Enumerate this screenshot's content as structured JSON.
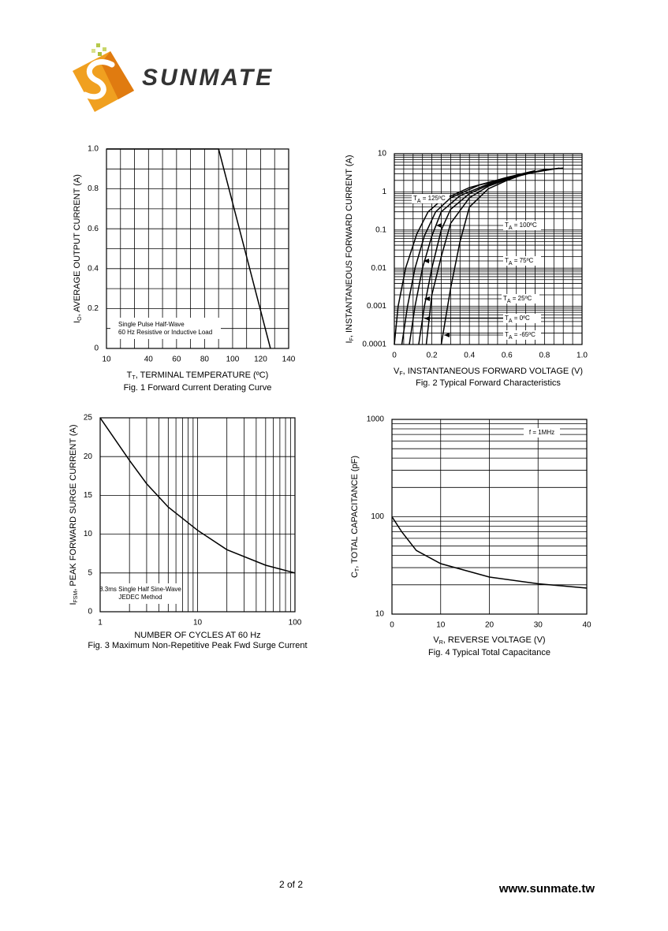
{
  "logo": "SUNMATE",
  "chart_data": [
    {
      "type": "line",
      "title": "Fig. 1  Forward Current Derating Curve",
      "xlabel": [
        "T",
        "T",
        ", TERMINAL TEMPERATURE (ºC)"
      ],
      "ylabel": [
        "I",
        "O",
        ", AVERAGE OUTPUT CURRENT (A)"
      ],
      "xlim": [
        10,
        140
      ],
      "ylim": [
        0,
        1
      ],
      "xticks": [
        10,
        40,
        60,
        80,
        100,
        120,
        140
      ],
      "yticks": [
        0,
        0.2,
        0.4,
        0.6,
        0.8,
        {
          "value": 1,
          "label": "1.0"
        }
      ],
      "grid": true,
      "xgrid": [
        10,
        20,
        30,
        40,
        50,
        60,
        70,
        80,
        90,
        100,
        110,
        120,
        130,
        140
      ],
      "ygrid": [
        0,
        0.1,
        0.2,
        0.3,
        0.4,
        0.5,
        0.6,
        0.7,
        0.8,
        0.9,
        1
      ],
      "annotation": [
        "Single Pulse Half-Wave",
        "60 Hz Resistive or Inductive Load"
      ],
      "series": [
        {
          "color": "#000000",
          "x": [
            10,
            90,
            127
          ],
          "values": [
            1,
            1,
            0
          ]
        }
      ]
    },
    {
      "type": "line",
      "title": "Fig. 2  Typical Forward Characteristics",
      "xlabel": [
        "V",
        "F",
        ", INSTANTANEOUS FORWARD VOLTAGE (V)"
      ],
      "ylabel": [
        "I",
        "F",
        ", INSTANTANEOUS FORWARD CURRENT (A)"
      ],
      "xlim": [
        0,
        1
      ],
      "ylim": [
        0.0001,
        10
      ],
      "yscale": "log",
      "xticks": [
        0,
        0.2,
        0.4,
        0.6,
        0.8,
        {
          "value": 1,
          "label": "1.0"
        }
      ],
      "yticks": [
        0.0001,
        0.001,
        0.01,
        0.1,
        1,
        10
      ],
      "grid": true,
      "xgrid": [
        0,
        0.05,
        0.1,
        0.15,
        0.2,
        0.25,
        0.3,
        0.35,
        0.4,
        0.45,
        0.5,
        0.55,
        0.6,
        0.65,
        0.7,
        0.75,
        0.8,
        0.85,
        0.9,
        0.95,
        1
      ],
      "ygrid": [
        0.0001,
        0.0002,
        0.0003,
        0.0004,
        0.0005,
        0.0006,
        0.0007,
        0.0008,
        0.0009,
        0.001,
        0.002,
        0.003,
        0.004,
        0.005,
        0.006,
        0.007,
        0.008,
        0.009,
        0.01,
        0.02,
        0.03,
        0.04,
        0.05,
        0.06,
        0.07,
        0.08,
        0.09,
        0.1,
        0.2,
        0.3,
        0.4,
        0.5,
        0.6,
        0.7,
        0.8,
        0.9,
        1,
        2,
        3,
        4,
        5,
        6,
        7,
        8,
        9,
        10
      ],
      "series": [
        {
          "name": [
            "T",
            "A",
            " = 125ºC"
          ],
          "color": "#000000",
          "x": [
            0,
            0.02,
            0.06,
            0.12,
            0.18,
            0.25,
            0.4,
            0.6,
            0.75
          ],
          "values": [
            0.0001,
            0.001,
            0.01,
            0.08,
            0.3,
            0.6,
            1.3,
            2.4,
            3.6
          ]
        },
        {
          "name": [
            "T",
            "A",
            " = 100ºC"
          ],
          "color": "#000000",
          "x": [
            0.04,
            0.07,
            0.11,
            0.16,
            0.22,
            0.3,
            0.45,
            0.6,
            0.75
          ],
          "values": [
            0.0001,
            0.001,
            0.01,
            0.07,
            0.3,
            0.7,
            1.5,
            2.3,
            3.5
          ]
        },
        {
          "name": [
            "T",
            "A",
            " = 75ºC"
          ],
          "color": "#000000",
          "x": [
            0.08,
            0.11,
            0.15,
            0.2,
            0.25,
            0.35,
            0.5,
            0.65,
            0.8
          ],
          "values": [
            0.0001,
            0.001,
            0.01,
            0.07,
            0.3,
            0.8,
            1.6,
            2.6,
            3.8
          ]
        },
        {
          "name": [
            "T",
            "A",
            " = 25ºC"
          ],
          "color": "#000000",
          "x": [
            0.13,
            0.16,
            0.2,
            0.25,
            0.3,
            0.4,
            0.5,
            0.6,
            0.75,
            0.88
          ],
          "values": [
            0.0001,
            0.001,
            0.01,
            0.1,
            0.35,
            0.9,
            1.5,
            2.2,
            3.3,
            4.2
          ]
        },
        {
          "name": [
            "T",
            "A",
            " = 0ºC"
          ],
          "color": "#000000",
          "x": [
            0.17,
            0.2,
            0.25,
            0.3,
            0.4,
            0.5,
            0.6,
            0.7,
            0.85
          ],
          "values": [
            0.0001,
            0.002,
            0.02,
            0.15,
            0.7,
            1.4,
            2.1,
            3,
            4
          ]
        },
        {
          "name": [
            "T",
            "A",
            " = -65ºC"
          ],
          "color": "#000000",
          "x": [
            0.25,
            0.3,
            0.35,
            0.4,
            0.5,
            0.6,
            0.7,
            0.8,
            0.9
          ],
          "values": [
            0.0001,
            0.003,
            0.05,
            0.4,
            1.2,
            2,
            3,
            3.8,
            4.2
          ]
        }
      ]
    },
    {
      "type": "line",
      "title": "Fig. 3  Maximum Non-Repetitive Peak Fwd Surge Current",
      "xlabel": "NUMBER OF CYCLES AT 60 Hz",
      "ylabel": [
        "I",
        "FSM",
        ", PEAK FORWARD SURGE CURRENT (A)"
      ],
      "xlim": [
        1,
        100
      ],
      "ylim": [
        0,
        25
      ],
      "xscale": "log",
      "xticks": [
        1,
        10,
        100
      ],
      "yticks": [
        0,
        5,
        10,
        15,
        20,
        25
      ],
      "grid": true,
      "xgrid": [
        1,
        2,
        3,
        4,
        5,
        6,
        7,
        8,
        9,
        10,
        20,
        30,
        40,
        50,
        60,
        70,
        80,
        90,
        100
      ],
      "ygrid": [
        0,
        5,
        10,
        15,
        20,
        25
      ],
      "annotation": [
        "8.3ms Single Half Sine-Wave",
        "JEDEC Method"
      ],
      "series": [
        {
          "color": "#000000",
          "x": [
            1,
            2,
            3,
            5,
            10,
            20,
            50,
            100
          ],
          "values": [
            25,
            19.5,
            16.5,
            13.5,
            10.5,
            8,
            6,
            5
          ]
        }
      ]
    },
    {
      "type": "line",
      "title": "Fig. 4  Typical Total Capacitance",
      "xlabel": [
        "V",
        "R",
        ", REVERSE VOLTAGE (V)"
      ],
      "ylabel": [
        "C",
        "T",
        ", TOTAL CAPACITANCE (pF)"
      ],
      "xlim": [
        0,
        40
      ],
      "ylim": [
        10,
        1000
      ],
      "yscale": "log",
      "xticks": [
        0,
        10,
        20,
        30,
        40
      ],
      "yticks": [
        10,
        100,
        1000
      ],
      "grid": true,
      "xgrid": [
        0,
        10,
        20,
        30,
        40
      ],
      "ygrid": [
        10,
        20,
        30,
        40,
        50,
        60,
        70,
        80,
        90,
        100,
        200,
        300,
        400,
        500,
        600,
        700,
        800,
        900,
        1000
      ],
      "annotation": [
        "f = 1MHz"
      ],
      "series": [
        {
          "color": "#000000",
          "x": [
            0,
            2,
            5,
            10,
            20,
            30,
            40
          ],
          "values": [
            100,
            70,
            45,
            33,
            24,
            20.5,
            18.5
          ]
        }
      ]
    }
  ],
  "footer": {
    "page": "2 of 2",
    "url": "www.sunmate.tw"
  }
}
